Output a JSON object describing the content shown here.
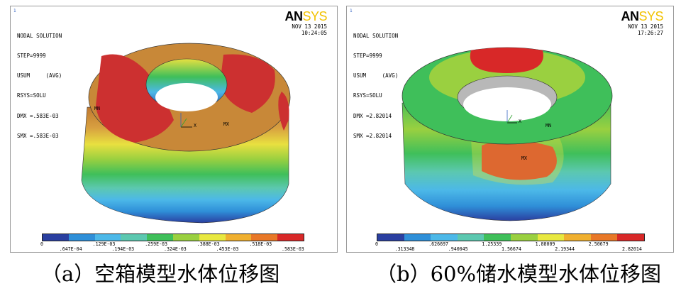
{
  "panel_a": {
    "index": "1",
    "title": "NODAL SOLUTION",
    "step": "STEP=9999",
    "usum": "USUM     (AVG)",
    "rsys": "RSYS=SOLU",
    "dmx": "DMX =.583E-03",
    "smx": "SMX =.583E-03",
    "logo_bold": "AN",
    "logo_light": "SYS",
    "date": "NOV 13 2015",
    "time": "10:24:05",
    "label_mn": "MN",
    "label_mx": "MX",
    "axis_x": "X",
    "legend_top": [
      "0",
      ".129E-03",
      ".259E-03",
      ".388E-03",
      ".518E-03"
    ],
    "legend_bottom": [
      ".647E-04",
      ".194E-03",
      ".324E-03",
      ".453E-03",
      ".583E-03"
    ],
    "caption": "（a）空箱模型水体位移图"
  },
  "panel_b": {
    "index": "1",
    "title": "NODAL SOLUTION",
    "step": "STEP=9999",
    "usum": "USUM     (AVG)",
    "rsys": "RSYS=SOLU",
    "dmx": "DMX =2.82014",
    "smx": "SMX =2.82014",
    "logo_bold": "AN",
    "logo_light": "SYS",
    "date": "NOV 13 2015",
    "time": "17:26:27",
    "label_mn": "MN",
    "label_mx": "MX",
    "axis_x": "X",
    "legend_top": [
      "0",
      ".626697",
      "1.25339",
      "1.88009",
      "2.50679"
    ],
    "legend_bottom": [
      ".313348",
      ".940045",
      "1.56674",
      "2.19344",
      "2.82014"
    ],
    "caption": "（b）60%储水模型水体位移图"
  },
  "legend_colors": [
    "#2a3fa0",
    "#2f8fd8",
    "#4cb8e8",
    "#5cc8b0",
    "#3fbf5a",
    "#9ad040",
    "#e8e840",
    "#f0b030",
    "#e87828",
    "#d82828"
  ]
}
